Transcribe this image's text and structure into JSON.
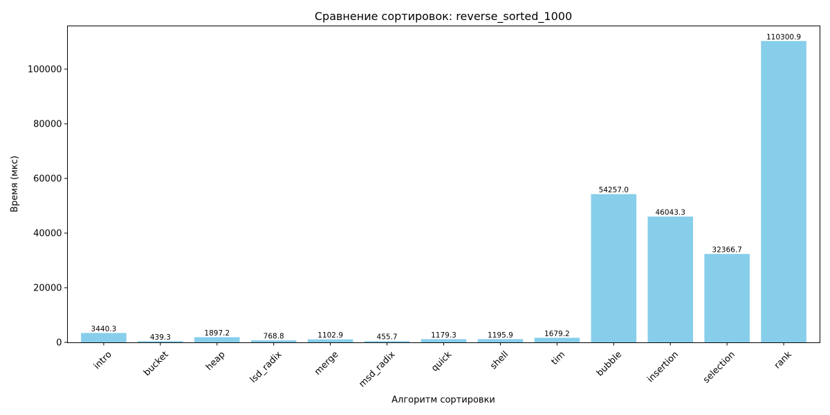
{
  "chart_data": {
    "type": "bar",
    "title": "Сравнение сортировок: reverse_sorted_1000",
    "xlabel": "Алгоритм сортировки",
    "ylabel": "Время (мкс)",
    "categories": [
      "intro",
      "bucket",
      "heap",
      "lsd_radix",
      "merge",
      "msd_radix",
      "quick",
      "shell",
      "tim",
      "bubble",
      "insertion",
      "selection",
      "rank"
    ],
    "values": [
      3440.3,
      439.3,
      1897.2,
      768.8,
      1102.9,
      455.7,
      1179.3,
      1195.9,
      1679.2,
      54257.0,
      46043.3,
      32366.7,
      110300.9
    ],
    "value_labels": [
      "3440.3",
      "439.3",
      "1897.2",
      "768.8",
      "1102.9",
      "455.7",
      "1179.3",
      "1195.9",
      "1679.2",
      "54257.0",
      "46043.3",
      "32366.7",
      "110300.9"
    ],
    "yticks": [
      0,
      20000,
      40000,
      60000,
      80000,
      100000
    ],
    "ytick_labels": [
      "0",
      "20000",
      "40000",
      "60000",
      "80000",
      "100000"
    ],
    "ylim": [
      0,
      115816
    ],
    "bar_color": "#87ceeb",
    "grid": false,
    "legend": "none"
  }
}
